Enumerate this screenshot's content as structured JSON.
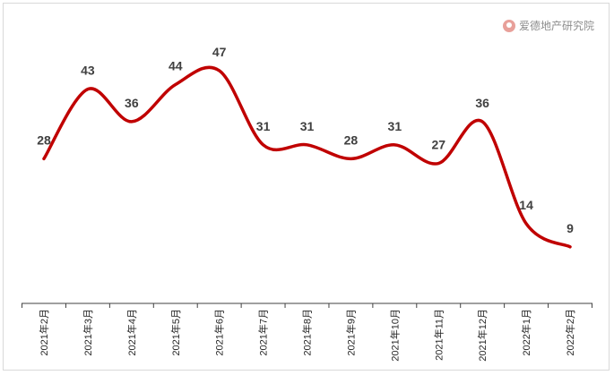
{
  "watermark": {
    "text": "爱德地产研究院",
    "logo_icon": "aide-logo-icon"
  },
  "chart_data": {
    "type": "line",
    "title": "",
    "xlabel": "",
    "ylabel": "",
    "categories": [
      "2021年2月",
      "2021年3月",
      "2021年4月",
      "2021年5月",
      "2021年6月",
      "2021年7月",
      "2021年8月",
      "2021年9月",
      "2021年10月",
      "2021年11月",
      "2021年12月",
      "2022年1月",
      "2022年2月"
    ],
    "series": [
      {
        "values": [
          28,
          43,
          36,
          44,
          47,
          31,
          31,
          28,
          31,
          27,
          36,
          14,
          9
        ],
        "color": "#c00000"
      }
    ],
    "ylim": [
      0,
      50
    ],
    "grid": false,
    "legend": "none",
    "smooth": true,
    "data_labels": true
  }
}
